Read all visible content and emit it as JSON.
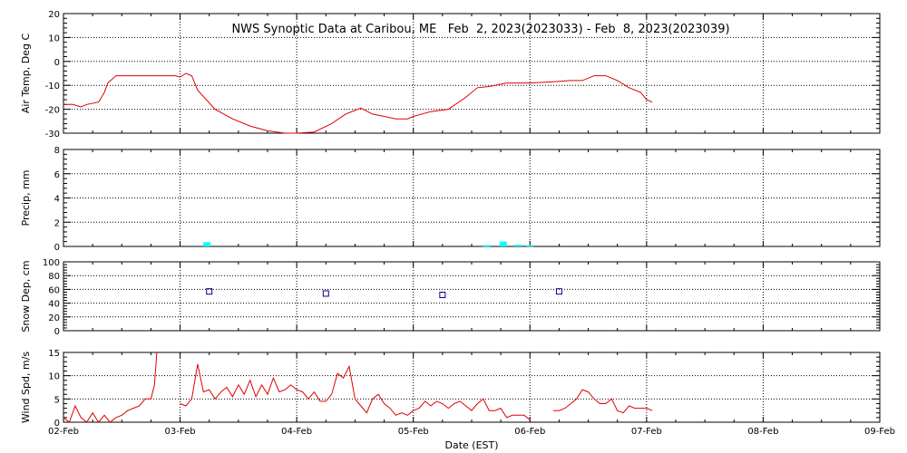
{
  "chart_data": {
    "type": "line",
    "title": "NWS Synoptic Data at Caribou, ME   Feb  2, 2023(2023033) - Feb  8, 2023(2023039)",
    "xlabel": "Date (EST)",
    "x_ticks": [
      "02-Feb",
      "03-Feb",
      "04-Feb",
      "05-Feb",
      "06-Feb",
      "07-Feb",
      "08-Feb",
      "09-Feb"
    ],
    "xlim_days": [
      0,
      7
    ],
    "grid": true,
    "colors": {
      "temp": "#dd0000",
      "precip": "#00ffff",
      "snow": "#000080",
      "wind": "#dd0000",
      "grid": "#000000"
    },
    "panels": [
      {
        "id": "temp",
        "ylabel": "Air Temp, Deg C",
        "ylim": [
          -30,
          20
        ],
        "yticks": [
          -30,
          -20,
          -10,
          0,
          10,
          20
        ],
        "series": [
          {
            "type": "line",
            "x": [
              0,
              0.08,
              0.15,
              0.2,
              0.3,
              0.35,
              0.38,
              0.45,
              0.55,
              0.7,
              0.9,
              0.96,
              1.0,
              1.05,
              1.1,
              1.15,
              1.3,
              1.45,
              1.6,
              1.75,
              1.9,
              2.0,
              2.15,
              2.3,
              2.42,
              2.55,
              2.65,
              2.75,
              2.85,
              2.95,
              3.0,
              3.15,
              3.3,
              3.45,
              3.55,
              3.65,
              3.8,
              4.0,
              4.2,
              4.35,
              4.45,
              4.55,
              4.65,
              4.75,
              4.85,
              4.95,
              5.0,
              5.05
            ],
            "y": [
              -18,
              -18,
              -19,
              -18,
              -17,
              -13,
              -9,
              -6,
              -6,
              -6,
              -6,
              -6,
              -6.5,
              -5,
              -6,
              -12,
              -20,
              -24,
              -27,
              -29,
              -30,
              -30,
              -29.5,
              -26,
              -22,
              -19.5,
              -22,
              -23,
              -24,
              -24,
              -23,
              -21,
              -20,
              -15,
              -11,
              -10.5,
              -9,
              -9,
              -8.5,
              -8,
              -8,
              -6,
              -6,
              -8,
              -11,
              -13,
              -16,
              -17
            ]
          }
        ]
      },
      {
        "id": "precip",
        "ylabel": "Precip, mm",
        "ylim": [
          0,
          8
        ],
        "yticks": [
          0,
          2,
          4,
          6,
          8
        ],
        "series": [
          {
            "type": "bar",
            "x": [
              1.23,
              3.63,
              3.77,
              3.9,
              4.0
            ],
            "y": [
              0.35,
              0.1,
              0.4,
              0.15,
              0.1
            ]
          }
        ]
      },
      {
        "id": "snow",
        "ylabel": "Snow Dep, cm",
        "ylim": [
          0,
          100
        ],
        "yticks": [
          0,
          20,
          40,
          60,
          80,
          100
        ],
        "series": [
          {
            "type": "scatter",
            "x": [
              1.25,
              2.25,
              3.25,
              4.25
            ],
            "y": [
              57,
              54,
              52,
              57
            ]
          }
        ]
      },
      {
        "id": "wind",
        "ylabel": "Wind Spd, m/s",
        "ylim": [
          0,
          15
        ],
        "yticks": [
          0,
          5,
          10,
          15
        ],
        "series": [
          {
            "type": "line",
            "x": [
              0,
              0.05,
              0.1,
              0.15,
              0.2,
              0.25,
              0.3,
              0.35,
              0.4,
              0.45,
              0.5,
              0.55,
              0.6,
              0.65,
              0.7,
              0.75,
              0.78,
              0.8,
              null,
              1.0,
              1.05,
              1.1,
              1.15,
              1.2,
              1.25,
              1.3,
              1.35,
              1.4,
              1.45,
              1.5,
              1.55,
              1.6,
              1.65,
              1.7,
              1.75,
              1.8,
              1.85,
              1.9,
              1.95,
              2.0,
              2.05,
              2.1,
              2.15,
              2.2,
              2.25,
              2.3,
              2.35,
              2.4,
              2.45,
              2.5,
              2.55,
              2.6,
              2.65,
              2.7,
              2.75,
              2.8,
              2.85,
              2.9,
              2.95,
              3.0,
              3.05,
              3.1,
              3.15,
              3.2,
              3.25,
              3.3,
              3.35,
              3.4,
              3.45,
              3.5,
              3.55,
              3.6,
              3.65,
              3.7,
              3.75,
              3.8,
              3.85,
              3.9,
              3.95,
              4.0,
              null,
              4.2,
              4.25,
              4.3,
              4.35,
              4.4,
              4.45,
              4.5,
              4.55,
              4.6,
              4.65,
              4.7,
              4.75,
              4.8,
              4.85,
              4.9,
              4.95,
              5.0,
              5.05
            ],
            "y": [
              1,
              0,
              3.5,
              1,
              0,
              2,
              0,
              1.5,
              0,
              1,
              1.5,
              2.5,
              3,
              3.5,
              5,
              5,
              8,
              15,
              null,
              4,
              3.5,
              5,
              12.5,
              6.5,
              7,
              5,
              6.5,
              7.5,
              5.5,
              8,
              6,
              9,
              5.5,
              8,
              6,
              9.5,
              6.5,
              7,
              8,
              7,
              6.5,
              5,
              6.5,
              4.5,
              4.5,
              6,
              10.5,
              9.5,
              12,
              5,
              3.5,
              2,
              5,
              6,
              4,
              3,
              1.5,
              2,
              1.5,
              2.5,
              3,
              4.5,
              3.5,
              4.5,
              4,
              3,
              4,
              4.5,
              3.5,
              2.5,
              4,
              5,
              2.5,
              2.5,
              3,
              1,
              1.5,
              1.5,
              1.5,
              0.5,
              null,
              2.5,
              2.5,
              3,
              4,
              5,
              7,
              6.5,
              5,
              4,
              4,
              5,
              2.5,
              2,
              3.5,
              3,
              3,
              3,
              2.5
            ]
          }
        ]
      }
    ]
  }
}
